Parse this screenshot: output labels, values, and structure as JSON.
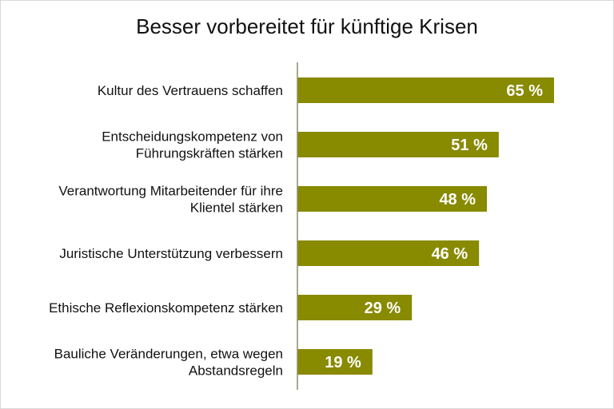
{
  "chart_data": {
    "type": "bar",
    "orientation": "horizontal",
    "title": "Besser vorbereitet für künftige Krisen",
    "categories": [
      [
        "Kultur des Vertrauens schaffen"
      ],
      [
        "Entscheidungskompetenz von",
        "Führungskräften stärken"
      ],
      [
        "Verantwortung Mitarbeitender für ihre",
        "Klientel stärken"
      ],
      [
        "Juristische Unterstützung verbessern"
      ],
      [
        "Ethische Reflexionskompetenz stärken"
      ],
      [
        "Bauliche Veränderungen, etwa wegen",
        "Abstandsregeln"
      ]
    ],
    "values": [
      65,
      51,
      48,
      46,
      29,
      19
    ],
    "value_labels": [
      "65 %",
      "51 %",
      "48 %",
      "46 %",
      "29 %",
      "19 %"
    ],
    "unit": "%",
    "xlim": [
      0,
      65
    ],
    "grid": false,
    "legend": "none",
    "bar_color": "#888a00",
    "axis_color": "#8c8c6a"
  }
}
